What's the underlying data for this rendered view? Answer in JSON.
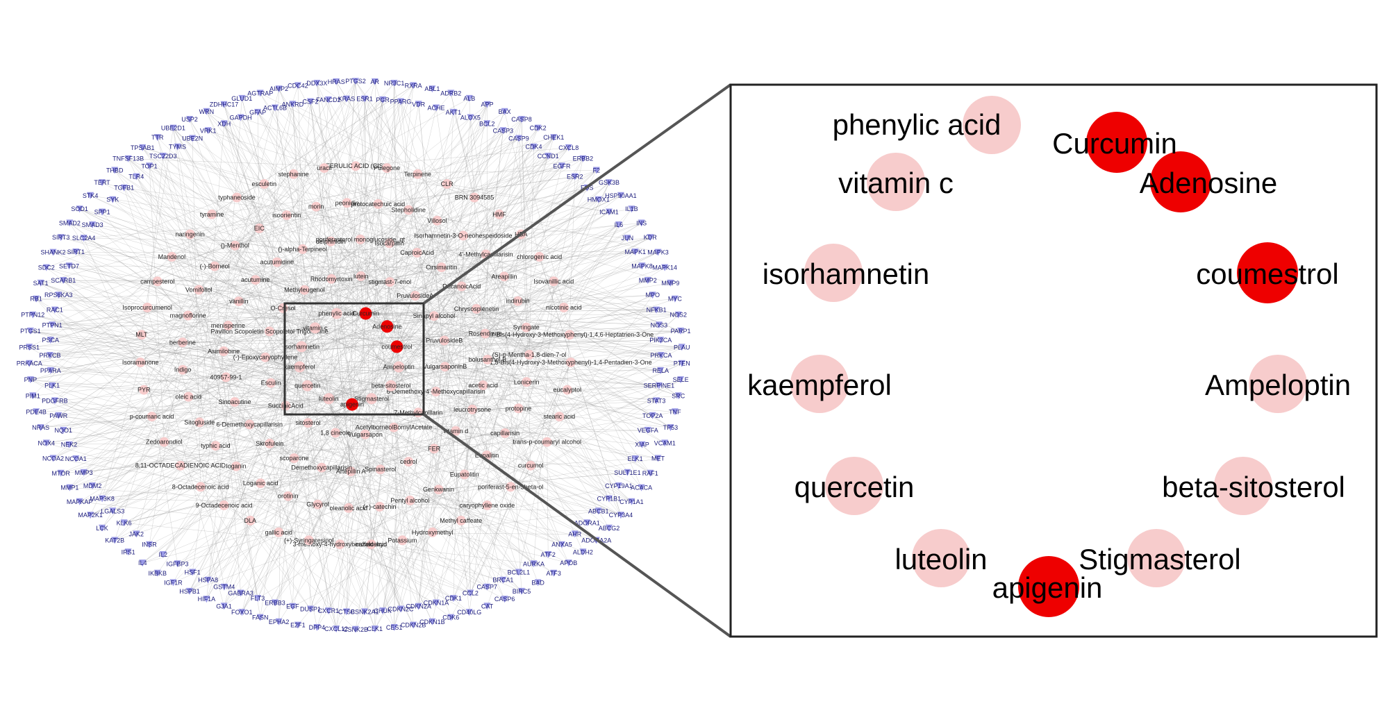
{
  "colors": {
    "target_node": "#9a9ae6",
    "target_label": "#1a1a7a",
    "compound_node": "#f7cccc",
    "key_compound_node": "#ee0000",
    "edge": "#9a9a9a",
    "frame": "#333333"
  },
  "targets": [
    "PTGS2",
    "ESR1",
    "AR",
    "PGR",
    "NR3C1",
    "PPARG",
    "RXRA",
    "VDR",
    "ABL1",
    "ACHE",
    "ADRB2",
    "AKT1",
    "ALB",
    "ALOX5",
    "APP",
    "BCL2",
    "BAX",
    "CASP3",
    "CASP8",
    "CASP9",
    "CDK2",
    "CDK4",
    "CHEK1",
    "CCND1",
    "CXCL8",
    "EGFR",
    "ERBB2",
    "ESR2",
    "F2",
    "FOS",
    "GSK3B",
    "HMOX1",
    "HSP90AA1",
    "ICAM1",
    "IL1B",
    "IL6",
    "INS",
    "JUN",
    "KDR",
    "MAPK1",
    "MAPK3",
    "MAPK8",
    "MAPK14",
    "MMP2",
    "MMP9",
    "MPO",
    "MYC",
    "NFKB1",
    "NOS2",
    "NOS3",
    "PARP1",
    "PIK3CA",
    "PLAU",
    "PRKCA",
    "PTEN",
    "RELA",
    "SELE",
    "SERPINE1",
    "SRC",
    "STAT3",
    "TNF",
    "TOP2A",
    "TP53",
    "VEGFA",
    "VCAM1",
    "XIAP",
    "MET",
    "ELK1",
    "RAF1",
    "SULT1E1",
    "ACACA",
    "CYP19A1",
    "CYP1A1",
    "CYP1B1",
    "CYP3A4",
    "ABCB1",
    "ABCG2",
    "ADORA1",
    "ADORA2A",
    "AHR",
    "ALDH2",
    "ANXA5",
    "APOB",
    "ATF2",
    "ATF3",
    "AURKA",
    "BAD",
    "BCL2L1",
    "BIRC5",
    "BRCA1",
    "CASP6",
    "CASP7",
    "CAT",
    "CCL2",
    "CD40LG",
    "CDK1",
    "CDK6",
    "CDKN1A",
    "CDKN1B",
    "CDKN2A",
    "CDKN2B",
    "CDKN2C",
    "CES1",
    "CHUK",
    "CLK1",
    "CSNK2A1",
    "CSNK2B",
    "CTSB",
    "CXCL12",
    "CXCR1",
    "DPP4",
    "DUSP1",
    "E2F1",
    "EGF",
    "EPHA2",
    "ERBB3",
    "FASN",
    "FLT3",
    "FOXO1",
    "GABRA3",
    "GJA1",
    "GSTM4",
    "HIF1A",
    "HSPA8",
    "HSPB1",
    "HSF1",
    "IGF1R",
    "IGFBP3",
    "IKBKB",
    "IL2",
    "IL4",
    "INSR",
    "IRS1",
    "JAK2",
    "KAT2B",
    "KLK6",
    "LCK",
    "LGALS3",
    "MAP2K1",
    "MAP3K8",
    "MAPKAP",
    "MDM2",
    "MMP1",
    "MMP3",
    "MTOR",
    "NCOA1",
    "NCOA2",
    "NEK2",
    "NOX4",
    "NQO1",
    "NRAS",
    "PAWR",
    "PDE4B",
    "PDGFRB",
    "PIM1",
    "PLK1",
    "PNP",
    "PPARA",
    "PRKACA",
    "PRKCB",
    "PRSS1",
    "PSCA",
    "PTGS1",
    "PTPN1",
    "PTPN12",
    "RAC1",
    "RB1",
    "RPS6KA3",
    "SAT1",
    "SCARB1",
    "SDC2",
    "SETD7",
    "SHANK2",
    "SIRT1",
    "SIRT3",
    "SLC2A4",
    "SMAD2",
    "SMAD3",
    "SOD1",
    "SPP1",
    "STK4",
    "SYK",
    "TERT",
    "TGFB1",
    "THBD",
    "TLR4",
    "TNFSF13B",
    "TOP1",
    "TPSAB1",
    "TSC22D3",
    "TTR",
    "TYMS",
    "UBE2D1",
    "UBE2N",
    "USP2",
    "VRK1",
    "WRN",
    "XDH",
    "ZDHHC17",
    "GAPDH",
    "GLUD1",
    "GFAP",
    "AGTRAP",
    "ACTL6B",
    "AIMP2",
    "ANKRD",
    "CDC42",
    "CSF2",
    "DDX3X",
    "FANCD2",
    "HRAS",
    "KRAS"
  ],
  "compounds": [
    "FERULIC ACID (CIS)",
    "Pulegone",
    "Terpinene",
    "CLR",
    "BRN 3094585",
    "HMF",
    "HBA",
    "chlorogenic acid",
    "Isovanillic acid",
    "nicotinic acid",
    "1,7-Bis(4-Hydroxy-3-Methoxyphenyl)-1,4,6-Heptatrien-3-One",
    "1,5-Bis(4-Hydroxy-3-Methoxyphenyl)-1,4-Pentadien-3-One",
    "eucalyptol",
    "stearic acid",
    "trans-p-coumaryl alcohol",
    "curcumol",
    "poriferast-5-en-3beta-ol",
    "caryophyllene oxide",
    "Methyl caffeate",
    "Hydroxymethyl",
    "Potassium",
    "caffeic acid",
    "3-methoxy-4-hydroxybenzaldehyd",
    "(+)-Syringaresinol",
    "gallic acid",
    "DLA",
    "9-Octadecenoic acid",
    "8-Octadecenoic acid",
    "8,11-OCTADECADIENOIC ACID",
    "Zedoarondiol",
    "p-coumaric acid",
    "PYR",
    "Isoramanone",
    "MLT",
    "Isoprocurcumenol",
    "campesterol",
    "Mandenol",
    "naringenin",
    "tyramine",
    "typhaneoside",
    "esculetin",
    "stephanine",
    "uracil",
    "protocatechuic acid",
    "Stepholidine",
    "Villosol",
    "Isorhamnetin-3-O-neohespeidoside",
    "4'-Methylcapillarisin",
    "Areapillin",
    "indirubin",
    "Syringate",
    "(S)-p-Mentha-1,8-dien-7-ol",
    "Lonicerin",
    "protopine",
    "capillarisin",
    "Eupalitin",
    "Eupatolitin",
    "Genkwanin",
    "Pentyl alcohol",
    "(+)-catechin",
    "oleanolic acid",
    "Glycyrol",
    "orotinin",
    "Loganic acid",
    "loganin",
    "typhic acid",
    "Sitogluside",
    "oleic acid",
    "Indigo",
    "berberine",
    "magnoflorine",
    "Vomifoliol",
    "(-)-Borneol",
    "()-Menthol",
    "EIC",
    "isoorientin",
    "morin",
    "peonidin",
    "Isocarpillin",
    "CaproicAcid",
    "Cirsimaritin",
    "DecanoicAcid",
    "Chrysosplenetin",
    "Rosendiene",
    "bolusanthol B",
    "acetic acid",
    "leucrotrysone",
    "vitamin d",
    "FER",
    "cedrol",
    "Spinasterol",
    "Artepillin A",
    "Demethoxycapillarisin",
    "scoparone",
    "Skrofulein",
    "6-Demethoxycapillarisin",
    "Sinoacutine",
    "40957-99-1",
    "Asimilobine",
    "menisperine",
    "vanillin",
    "acutumine",
    "acutumidine",
    "()-alpha-Terpineol",
    "delphinidin",
    "poriferasterol monoglucoside_qt",
    "stigmast-7-enol",
    "PruvulosideA",
    "Sinapyl alcohol",
    "PruvulosideB",
    "VulgarsaponinB",
    "6-Demethoxy-4'-Methoxycapillarisin",
    "7-Methylcapillarin",
    "AcetylborneolBornylAcetate",
    "Vulgarsapon",
    "1,8 cineole",
    "sitosterol",
    "SuccinicAcid",
    "Esculin",
    "(-)-Epoxycaryophyllene",
    "Pavillon Scopoletin Scopoletol Trigonelline",
    "O-Cresol",
    "Methyleugenol",
    "Rhodomyrtoxin",
    "lutein"
  ],
  "zoom": {
    "nodes": [
      {
        "label": "phenylic acid",
        "key": false
      },
      {
        "label": "Curcumin",
        "key": true
      },
      {
        "label": "Adenosine",
        "key": true
      },
      {
        "label": "vitamin c",
        "key": false
      },
      {
        "label": "isorhamnetin",
        "key": false
      },
      {
        "label": "coumestrol",
        "key": true
      },
      {
        "label": "kaempferol",
        "key": false
      },
      {
        "label": "Ampeloptin",
        "key": false
      },
      {
        "label": "quercetin",
        "key": false
      },
      {
        "label": "beta-sitosterol",
        "key": false
      },
      {
        "label": "luteolin",
        "key": false
      },
      {
        "label": "Stigmasterol",
        "key": false
      },
      {
        "label": "apigenin",
        "key": true
      }
    ]
  }
}
